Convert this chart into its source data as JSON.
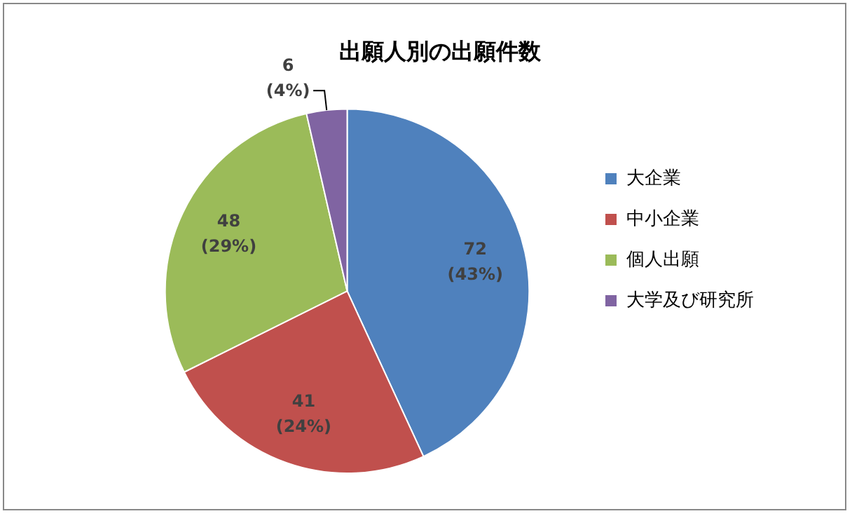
{
  "chart_data": {
    "type": "pie",
    "title": "出願人別の出願件数",
    "categories": [
      "大企業",
      "中小企業",
      "個人出願",
      "大学及び研究所"
    ],
    "values": [
      72,
      41,
      48,
      6
    ],
    "colors": [
      "#4f81bd",
      "#c0504d",
      "#9bbb59",
      "#8064a2"
    ],
    "value_labels": [
      "72\n(43%)",
      "41\n(24%)",
      "48\n(29%)",
      "6\n(4%)"
    ],
    "legend": "right"
  }
}
